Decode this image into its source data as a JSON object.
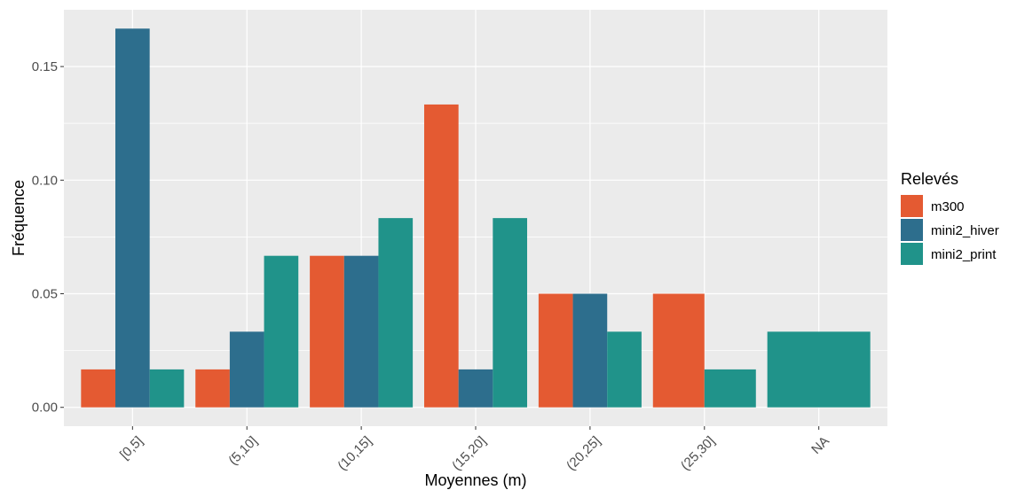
{
  "chart_data": {
    "type": "bar",
    "categories": [
      "[0,5]",
      "(5,10]",
      "(10,15]",
      "(15,20]",
      "(20,25]",
      "(25,30]",
      "NA"
    ],
    "series": [
      {
        "name": "m300",
        "color": "#E45A32",
        "values": [
          0.0167,
          0.0167,
          0.0667,
          0.1333,
          0.05,
          0.05,
          null
        ]
      },
      {
        "name": "mini2_hiver",
        "color": "#2D6E8D",
        "values": [
          0.1667,
          0.0333,
          0.0667,
          0.0167,
          0.05,
          null,
          null
        ]
      },
      {
        "name": "mini2_print",
        "color": "#20938A",
        "values": [
          0.0167,
          0.0667,
          0.0833,
          0.0833,
          0.0333,
          0.0167,
          0.0333
        ]
      }
    ],
    "xlabel": "Moyennes (m)",
    "ylabel": "Fréquence",
    "legend_title": "Relevés",
    "legend_position": "right",
    "y_ticks": [
      0.0,
      0.05,
      0.1,
      0.15
    ],
    "y_tick_labels": [
      "0.00",
      "0.05",
      "0.10",
      "0.15"
    ],
    "ylim": [
      -0.0083,
      0.175
    ],
    "grid": true,
    "panel_background": "#EBEBEB",
    "grid_color": "#FFFFFF"
  }
}
